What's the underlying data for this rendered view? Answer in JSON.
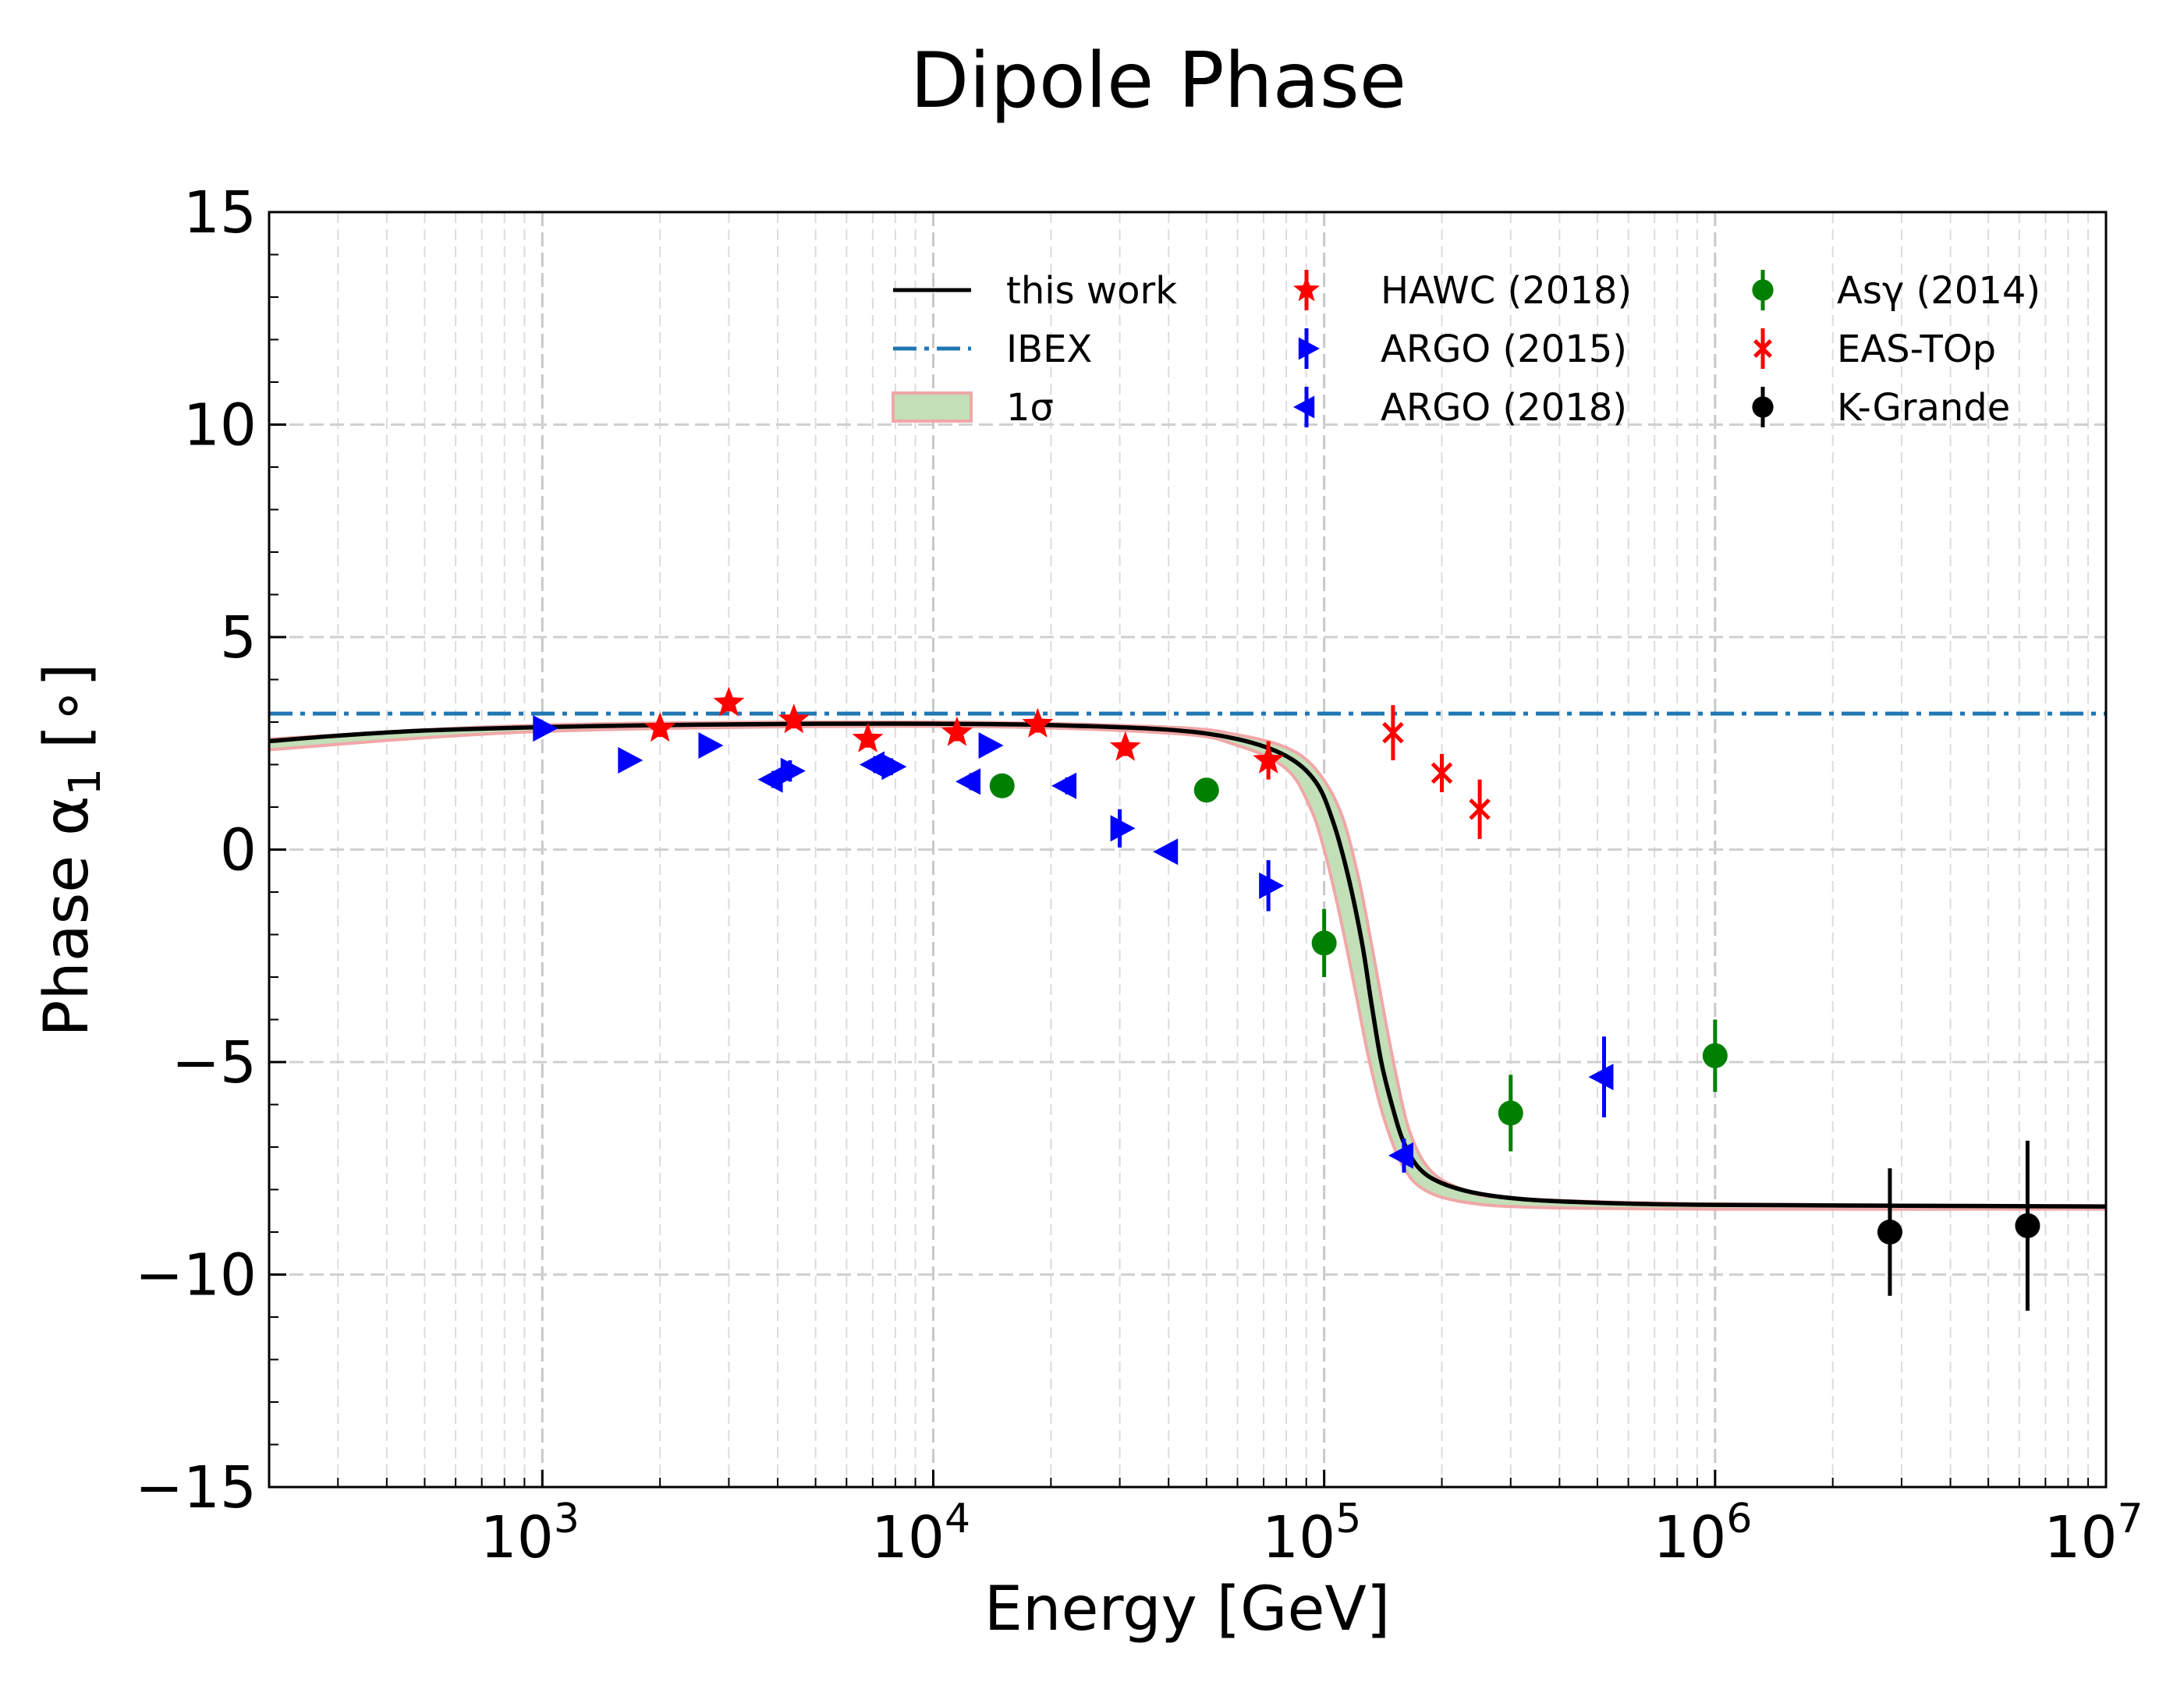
{
  "chart_data": {
    "type": "scatter",
    "title": "Dipole Phase",
    "xlabel": "Energy [GeV]",
    "ylabel": "Phase α",
    "ylabel_sub": "1",
    "ylabel_unit": " [∘]",
    "xscale": "log",
    "xlim": [
      200,
      10000000
    ],
    "ylim": [
      -15,
      15
    ],
    "yticks": [
      {
        "value": 15,
        "label": "15"
      },
      {
        "value": 10,
        "label": "10"
      },
      {
        "value": 5,
        "label": "5"
      },
      {
        "value": 0,
        "label": "0"
      },
      {
        "value": -5,
        "label": "−5"
      },
      {
        "value": -10,
        "label": "−10"
      },
      {
        "value": -15,
        "label": "−15"
      }
    ],
    "xticks": [
      {
        "value": 1000,
        "base": "10",
        "exp": "3"
      },
      {
        "value": 10000,
        "base": "10",
        "exp": "4"
      },
      {
        "value": 100000,
        "base": "10",
        "exp": "5"
      },
      {
        "value": 1000000,
        "base": "10",
        "exp": "6"
      },
      {
        "value": 10000000,
        "base": "10",
        "exp": "7"
      }
    ],
    "grid": true,
    "legend_position": "top-right",
    "ibex": {
      "name": "IBEX",
      "value": 3.2,
      "color": "#1f77b4"
    },
    "model": {
      "name": "this work",
      "color": "#000000",
      "points": [
        [
          200,
          2.55
        ],
        [
          300,
          2.68
        ],
        [
          500,
          2.8
        ],
        [
          1000,
          2.88
        ],
        [
          2000,
          2.93
        ],
        [
          5000,
          2.96
        ],
        [
          10000,
          2.96
        ],
        [
          20000,
          2.93
        ],
        [
          40000,
          2.82
        ],
        [
          60000,
          2.6
        ],
        [
          80000,
          2.2
        ],
        [
          95000,
          1.6
        ],
        [
          105000,
          0.7
        ],
        [
          115000,
          -0.6
        ],
        [
          125000,
          -2.2
        ],
        [
          132000,
          -3.6
        ],
        [
          140000,
          -5.0
        ],
        [
          150000,
          -6.1
        ],
        [
          160000,
          -6.9
        ],
        [
          175000,
          -7.5
        ],
        [
          200000,
          -7.85
        ],
        [
          250000,
          -8.1
        ],
        [
          350000,
          -8.25
        ],
        [
          600000,
          -8.33
        ],
        [
          1000000,
          -8.36
        ],
        [
          3000000,
          -8.38
        ],
        [
          10000000,
          -8.4
        ]
      ]
    },
    "band": {
      "name": "1σ",
      "fill": "#c2dfb8",
      "edge": "#f0a7a7",
      "upper": [
        [
          200,
          2.6
        ],
        [
          1000,
          2.93
        ],
        [
          10000,
          3.0
        ],
        [
          40000,
          2.88
        ],
        [
          60000,
          2.7
        ],
        [
          80000,
          2.4
        ],
        [
          95000,
          1.9
        ],
        [
          110000,
          0.9
        ],
        [
          122000,
          -0.6
        ],
        [
          132000,
          -2.2
        ],
        [
          142000,
          -3.8
        ],
        [
          152000,
          -5.2
        ],
        [
          165000,
          -6.6
        ],
        [
          185000,
          -7.5
        ],
        [
          220000,
          -7.95
        ],
        [
          300000,
          -8.2
        ],
        [
          1000000,
          -8.34
        ],
        [
          10000000,
          -8.38
        ]
      ],
      "lower": [
        [
          200,
          2.35
        ],
        [
          1000,
          2.78
        ],
        [
          10000,
          2.9
        ],
        [
          40000,
          2.74
        ],
        [
          60000,
          2.45
        ],
        [
          80000,
          1.9
        ],
        [
          92000,
          1.0
        ],
        [
          100000,
          0.0
        ],
        [
          110000,
          -1.6
        ],
        [
          120000,
          -3.3
        ],
        [
          130000,
          -4.9
        ],
        [
          142000,
          -6.3
        ],
        [
          158000,
          -7.4
        ],
        [
          180000,
          -8.0
        ],
        [
          230000,
          -8.3
        ],
        [
          350000,
          -8.42
        ],
        [
          1000000,
          -8.46
        ],
        [
          10000000,
          -8.46
        ]
      ]
    },
    "series": [
      {
        "name": "HAWC (2018)",
        "marker": "star",
        "color": "#ff0000",
        "points": [
          {
            "x": 2000,
            "y": 2.85,
            "err": 0.2
          },
          {
            "x": 3000,
            "y": 3.45,
            "err": 0.2
          },
          {
            "x": 4400,
            "y": 3.05,
            "err": 0.2
          },
          {
            "x": 6800,
            "y": 2.6,
            "err": 0.2
          },
          {
            "x": 11500,
            "y": 2.75,
            "err": 0.2
          },
          {
            "x": 18500,
            "y": 2.95,
            "err": 0.2
          },
          {
            "x": 31000,
            "y": 2.4,
            "err": 0.2
          },
          {
            "x": 72000,
            "y": 2.1,
            "err": 0.45
          }
        ]
      },
      {
        "name": "ARGO (2015)",
        "marker": "triangle-right",
        "color": "#0000ff",
        "points": [
          {
            "x": 1000,
            "y": 2.85,
            "err": 0.15
          },
          {
            "x": 1650,
            "y": 2.1,
            "err": 0.15
          },
          {
            "x": 2650,
            "y": 2.45,
            "err": 0.15
          },
          {
            "x": 4300,
            "y": 1.85,
            "err": 0.25
          },
          {
            "x": 7800,
            "y": 1.95,
            "err": 0.2
          },
          {
            "x": 13800,
            "y": 2.45,
            "err": 0.15
          },
          {
            "x": 30000,
            "y": 0.5,
            "err": 0.45
          },
          {
            "x": 72000,
            "y": -0.85,
            "err": 0.6
          }
        ]
      },
      {
        "name": "ARGO (2018)",
        "marker": "triangle-left",
        "color": "#0000ff",
        "points": [
          {
            "x": 3900,
            "y": 1.65,
            "err": 0.2
          },
          {
            "x": 7100,
            "y": 2.0,
            "err": 0.2
          },
          {
            "x": 12500,
            "y": 1.6,
            "err": 0.2
          },
          {
            "x": 22000,
            "y": 1.5,
            "err": 0.2
          },
          {
            "x": 40000,
            "y": -0.05,
            "err": 0.15
          },
          {
            "x": 160000,
            "y": -7.2,
            "err": 0.4
          },
          {
            "x": 520000,
            "y": -5.35,
            "err": 0.95
          }
        ]
      },
      {
        "name": "Asγ (2014)",
        "marker": "circle",
        "color": "#008000",
        "points": [
          {
            "x": 15000,
            "y": 1.5,
            "err": 0.1
          },
          {
            "x": 50000,
            "y": 1.4,
            "err": 0.25
          },
          {
            "x": 100000,
            "y": -2.2,
            "err": 0.8
          },
          {
            "x": 300000,
            "y": -6.2,
            "err": 0.9
          },
          {
            "x": 1000000,
            "y": -4.85,
            "err": 0.85
          }
        ]
      },
      {
        "name": "EAS-TOp",
        "marker": "x",
        "color": "#ff0000",
        "points": [
          {
            "x": 150000,
            "y": 2.75,
            "err": 0.65
          },
          {
            "x": 200000,
            "y": 1.8,
            "err": 0.45
          },
          {
            "x": 250000,
            "y": 0.95,
            "err": 0.7
          }
        ]
      },
      {
        "name": "K-Grande",
        "marker": "circle",
        "color": "#000000",
        "points": [
          {
            "x": 2800000,
            "y": -9.0,
            "err": 1.5
          },
          {
            "x": 6300000,
            "y": -8.85,
            "err": 2.0
          }
        ]
      }
    ]
  }
}
